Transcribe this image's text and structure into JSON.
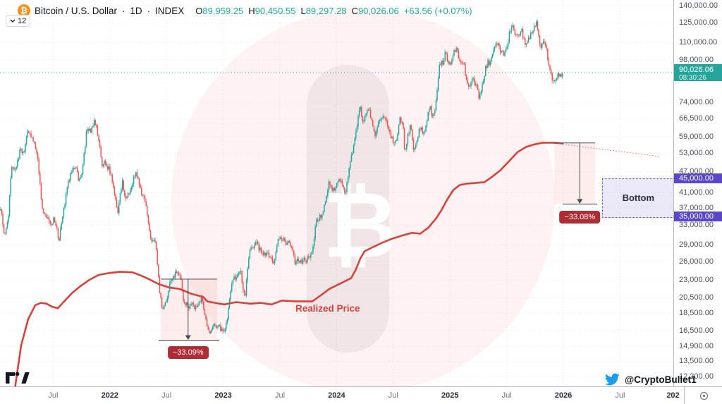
{
  "header": {
    "symbol_title": "Bitcoin / U.S. Dollar",
    "dot": "·",
    "interval": "1D",
    "market": "INDEX",
    "coin_glyph": "₿",
    "ohlc": {
      "o_label": "O",
      "o": "89,959.25",
      "h_label": "H",
      "h": "90,450.55",
      "l_label": "L",
      "l": "89,297.28",
      "c_label": "C",
      "c": "90,026.06",
      "change": "+63.56 (+0.07%)"
    }
  },
  "toolbar": {
    "drawings_count": "12"
  },
  "price_axis": {
    "ticks": [
      {
        "v": 140000,
        "label": "140,000.00"
      },
      {
        "v": 125000,
        "label": "125,000.00"
      },
      {
        "v": 110000,
        "label": "110,000.00"
      },
      {
        "v": 98000,
        "label": "98,000.00"
      },
      {
        "v": 74000,
        "label": "74,000.00"
      },
      {
        "v": 66500,
        "label": "66,500.00"
      },
      {
        "v": 59000,
        "label": "59,000.00"
      },
      {
        "v": 53000,
        "label": "53,000.00"
      },
      {
        "v": 47000,
        "label": "47,000.00"
      },
      {
        "v": 41000,
        "label": "41,000.00"
      },
      {
        "v": 37000,
        "label": "37,000.00"
      },
      {
        "v": 33000,
        "label": "33,000.00"
      },
      {
        "v": 29000,
        "label": "29,000.00"
      },
      {
        "v": 26000,
        "label": "26,000.00"
      },
      {
        "v": 23000,
        "label": "23,000.00"
      },
      {
        "v": 20500,
        "label": "20,500.00"
      },
      {
        "v": 18500,
        "label": "18,500.00"
      },
      {
        "v": 16500,
        "label": "16,500.00"
      },
      {
        "v": 14900,
        "label": "14,900.00"
      },
      {
        "v": 13500,
        "label": "13,500.00"
      },
      {
        "v": 12200,
        "label": "12,200.00"
      }
    ],
    "last_price_badge": {
      "price": "90,026.06",
      "countdown": "08:30:26",
      "value": 90026.06
    },
    "level_badges": [
      {
        "label": "45,000.00",
        "value": 45000
      },
      {
        "label": "35,000.00",
        "value": 35000
      }
    ]
  },
  "time_axis": {
    "ticks": [
      {
        "t": 2021.5,
        "label": "Jul",
        "bold": false
      },
      {
        "t": 2022.0,
        "label": "2022",
        "bold": true
      },
      {
        "t": 2022.5,
        "label": "Jul",
        "bold": false
      },
      {
        "t": 2023.0,
        "label": "2023",
        "bold": true
      },
      {
        "t": 2023.5,
        "label": "Jul",
        "bold": false
      },
      {
        "t": 2024.0,
        "label": "2024",
        "bold": true
      },
      {
        "t": 2024.5,
        "label": "Jul",
        "bold": false
      },
      {
        "t": 2025.0,
        "label": "2025",
        "bold": true
      },
      {
        "t": 2025.5,
        "label": "Jul",
        "bold": false
      },
      {
        "t": 2026.0,
        "label": "2026",
        "bold": true
      },
      {
        "t": 2026.5,
        "label": "Jul",
        "bold": false
      },
      {
        "t": 2027.0,
        "label": "202",
        "bold": true,
        "clip": true
      }
    ]
  },
  "annotations": {
    "drop_2022_label": "−33.09%",
    "drop_2025_label": "−33.08%",
    "bottom_label": "Bottom",
    "realized_label": "Realized Price"
  },
  "watermark": {
    "glyph": "₿"
  },
  "footer": {
    "twitter_handle": "@CryptoBullet1"
  },
  "colors": {
    "up_teal": "#26a69a",
    "down_red": "#ef5350",
    "realized_red": "#d8423d",
    "badge_red": "#b02c35",
    "purple": "#5b46c7",
    "purple_fill": "rgba(91,70,199,0.12)",
    "pink_zone": "rgba(239,83,80,0.10)",
    "watermark_circle": "rgba(240,83,80,0.075)",
    "watermark_band": "rgba(150,152,164,0.13)",
    "grid": "rgba(120,123,134,0.18)",
    "annotation_gray": "#44474f",
    "twitter_blue": "#1d9bf0",
    "bitcoin_orange": "#f7931a"
  },
  "chart_data": {
    "type": "candlestick",
    "title": "Bitcoin / U.S. Dollar · 1D · INDEX",
    "scale": "log",
    "x_domain_years": [
      2021.03,
      2026.97
    ],
    "y_ticks": [
      140000,
      125000,
      110000,
      98000,
      74000,
      66500,
      59000,
      53000,
      47000,
      41000,
      37000,
      33000,
      29000,
      26000,
      23000,
      20500,
      18500,
      16500,
      14900,
      13500,
      12200
    ],
    "last_price": 90026.06,
    "ohlc": {
      "open": 89959.25,
      "high": 90450.55,
      "low": 89297.28,
      "close": 90026.06,
      "change": 63.56,
      "change_pct": 0.07
    },
    "candle_close_anchors": [
      [
        2021.04,
        36500
      ],
      [
        2021.07,
        31000
      ],
      [
        2021.1,
        33500
      ],
      [
        2021.13,
        48000
      ],
      [
        2021.17,
        47500
      ],
      [
        2021.21,
        54500
      ],
      [
        2021.24,
        52000
      ],
      [
        2021.28,
        62500
      ],
      [
        2021.31,
        58500
      ],
      [
        2021.34,
        56000
      ],
      [
        2021.37,
        49000
      ],
      [
        2021.4,
        37000
      ],
      [
        2021.44,
        35500
      ],
      [
        2021.47,
        33000
      ],
      [
        2021.51,
        34500
      ],
      [
        2021.55,
        30000
      ],
      [
        2021.58,
        34000
      ],
      [
        2021.62,
        42000
      ],
      [
        2021.66,
        47500
      ],
      [
        2021.7,
        48800
      ],
      [
        2021.73,
        43500
      ],
      [
        2021.76,
        48000
      ],
      [
        2021.8,
        63500
      ],
      [
        2021.83,
        60500
      ],
      [
        2021.86,
        66500
      ],
      [
        2021.9,
        58500
      ],
      [
        2021.93,
        49000
      ],
      [
        2021.96,
        50500
      ],
      [
        2022.0,
        47000
      ],
      [
        2022.03,
        42500
      ],
      [
        2022.07,
        35800
      ],
      [
        2022.11,
        44200
      ],
      [
        2022.14,
        39000
      ],
      [
        2022.17,
        40500
      ],
      [
        2022.23,
        47200
      ],
      [
        2022.27,
        42000
      ],
      [
        2022.31,
        38500
      ],
      [
        2022.36,
        30000
      ],
      [
        2022.4,
        29800
      ],
      [
        2022.44,
        21000
      ],
      [
        2022.46,
        19000
      ],
      [
        2022.5,
        20200
      ],
      [
        2022.54,
        23200
      ],
      [
        2022.58,
        23900
      ],
      [
        2022.62,
        24100
      ],
      [
        2022.65,
        20100
      ],
      [
        2022.69,
        19200
      ],
      [
        2022.73,
        19500
      ],
      [
        2022.77,
        19300
      ],
      [
        2022.81,
        20400
      ],
      [
        2022.85,
        17500
      ],
      [
        2022.86,
        16300
      ],
      [
        2022.89,
        16000
      ],
      [
        2022.92,
        17200
      ],
      [
        2022.96,
        16800
      ],
      [
        2023.0,
        16600
      ],
      [
        2023.03,
        17200
      ],
      [
        2023.06,
        21000
      ],
      [
        2023.09,
        23100
      ],
      [
        2023.12,
        23200
      ],
      [
        2023.15,
        24600
      ],
      [
        2023.19,
        20300
      ],
      [
        2023.23,
        27500
      ],
      [
        2023.26,
        28400
      ],
      [
        2023.3,
        29300
      ],
      [
        2023.33,
        27800
      ],
      [
        2023.37,
        26900
      ],
      [
        2023.41,
        27200
      ],
      [
        2023.45,
        25300
      ],
      [
        2023.48,
        30600
      ],
      [
        2023.52,
        30400
      ],
      [
        2023.56,
        29100
      ],
      [
        2023.6,
        29300
      ],
      [
        2023.63,
        26000
      ],
      [
        2023.67,
        25900
      ],
      [
        2023.71,
        26100
      ],
      [
        2023.75,
        26500
      ],
      [
        2023.79,
        28000
      ],
      [
        2023.82,
        34200
      ],
      [
        2023.86,
        35000
      ],
      [
        2023.89,
        37000
      ],
      [
        2023.93,
        43700
      ],
      [
        2023.96,
        41900
      ],
      [
        2024.0,
        42800
      ],
      [
        2024.02,
        45000
      ],
      [
        2024.06,
        42600
      ],
      [
        2024.07,
        39900
      ],
      [
        2024.11,
        47800
      ],
      [
        2024.13,
        51500
      ],
      [
        2024.16,
        57000
      ],
      [
        2024.19,
        68000
      ],
      [
        2024.21,
        73000
      ],
      [
        2024.23,
        64500
      ],
      [
        2024.26,
        70000
      ],
      [
        2024.29,
        69500
      ],
      [
        2024.32,
        63800
      ],
      [
        2024.34,
        58200
      ],
      [
        2024.38,
        66500
      ],
      [
        2024.41,
        68800
      ],
      [
        2024.44,
        66200
      ],
      [
        2024.47,
        61000
      ],
      [
        2024.5,
        56500
      ],
      [
        2024.53,
        58000
      ],
      [
        2024.56,
        67500
      ],
      [
        2024.59,
        61500
      ],
      [
        2024.6,
        53500
      ],
      [
        2024.63,
        59400
      ],
      [
        2024.65,
        64300
      ],
      [
        2024.68,
        53900
      ],
      [
        2024.71,
        57500
      ],
      [
        2024.73,
        63200
      ],
      [
        2024.76,
        60300
      ],
      [
        2024.79,
        63000
      ],
      [
        2024.82,
        72500
      ],
      [
        2024.84,
        67500
      ],
      [
        2024.86,
        69400
      ],
      [
        2024.88,
        75500
      ],
      [
        2024.9,
        91000
      ],
      [
        2024.92,
        97500
      ],
      [
        2024.94,
        95800
      ],
      [
        2024.96,
        106000
      ],
      [
        2024.98,
        97000
      ],
      [
        2025.0,
        94400
      ],
      [
        2025.03,
        102000
      ],
      [
        2025.06,
        104500
      ],
      [
        2025.09,
        97800
      ],
      [
        2025.12,
        96500
      ],
      [
        2025.15,
        84500
      ],
      [
        2025.17,
        80500
      ],
      [
        2025.2,
        86000
      ],
      [
        2025.23,
        82800
      ],
      [
        2025.26,
        76500
      ],
      [
        2025.29,
        85200
      ],
      [
        2025.32,
        94500
      ],
      [
        2025.35,
        97000
      ],
      [
        2025.38,
        103500
      ],
      [
        2025.41,
        110500
      ],
      [
        2025.44,
        105000
      ],
      [
        2025.47,
        100500
      ],
      [
        2025.5,
        108000
      ],
      [
        2025.53,
        118200
      ],
      [
        2025.55,
        121500
      ],
      [
        2025.58,
        115500
      ],
      [
        2025.61,
        113000
      ],
      [
        2025.63,
        120500
      ],
      [
        2025.66,
        109000
      ],
      [
        2025.69,
        112500
      ],
      [
        2025.72,
        116000
      ],
      [
        2025.76,
        125000
      ],
      [
        2025.78,
        115000
      ],
      [
        2025.8,
        106000
      ],
      [
        2025.83,
        111500
      ],
      [
        2025.86,
        100500
      ],
      [
        2025.88,
        92500
      ],
      [
        2025.91,
        83500
      ],
      [
        2025.93,
        86500
      ],
      [
        2025.95,
        89500
      ],
      [
        2025.97,
        87500
      ],
      [
        2025.99,
        90000
      ]
    ],
    "realized_price_line": [
      [
        2021.143,
        10200
      ],
      [
        2021.218,
        15000
      ],
      [
        2021.28,
        17800
      ],
      [
        2021.342,
        19500
      ],
      [
        2021.392,
        19800
      ],
      [
        2021.441,
        19700
      ],
      [
        2021.491,
        19300
      ],
      [
        2021.541,
        19100
      ],
      [
        2021.591,
        19900
      ],
      [
        2021.665,
        21100
      ],
      [
        2021.74,
        22100
      ],
      [
        2021.815,
        23000
      ],
      [
        2021.902,
        23800
      ],
      [
        2021.995,
        24100
      ],
      [
        2022.088,
        24300
      ],
      [
        2022.2,
        24200
      ],
      [
        2022.275,
        23700
      ],
      [
        2022.35,
        23100
      ],
      [
        2022.43,
        22400
      ],
      [
        2022.524,
        21900
      ],
      [
        2022.617,
        21700
      ],
      [
        2022.722,
        21000
      ],
      [
        2022.822,
        20600
      ],
      [
        2022.859,
        20000
      ],
      [
        2022.928,
        19800
      ],
      [
        2023.009,
        19600
      ],
      [
        2023.114,
        19900
      ],
      [
        2023.239,
        19700
      ],
      [
        2023.332,
        19800
      ],
      [
        2023.425,
        19600
      ],
      [
        2023.518,
        20100
      ],
      [
        2023.643,
        20000
      ],
      [
        2023.786,
        20000
      ],
      [
        2023.86,
        20800
      ],
      [
        2023.935,
        21700
      ],
      [
        2024.034,
        22500
      ],
      [
        2024.128,
        23300
      ],
      [
        2024.171,
        24700
      ],
      [
        2024.209,
        26500
      ],
      [
        2024.246,
        27800
      ],
      [
        2024.314,
        28500
      ],
      [
        2024.401,
        29400
      ],
      [
        2024.489,
        30200
      ],
      [
        2024.576,
        30800
      ],
      [
        2024.663,
        31400
      ],
      [
        2024.737,
        31200
      ],
      [
        2024.806,
        32400
      ],
      [
        2024.874,
        34400
      ],
      [
        2024.924,
        36400
      ],
      [
        2024.974,
        39000
      ],
      [
        2025.03,
        41600
      ],
      [
        2025.086,
        43000
      ],
      [
        2025.154,
        43400
      ],
      [
        2025.229,
        43600
      ],
      [
        2025.303,
        43800
      ],
      [
        2025.372,
        45400
      ],
      [
        2025.446,
        47400
      ],
      [
        2025.521,
        50300
      ],
      [
        2025.596,
        53400
      ],
      [
        2025.67,
        55200
      ],
      [
        2025.745,
        56200
      ],
      [
        2025.82,
        56800
      ],
      [
        2025.913,
        56800
      ],
      [
        2025.994,
        56500
      ]
    ],
    "realized_projection": [
      [
        2025.994,
        56500
      ],
      [
        2026.846,
        51900
      ]
    ],
    "drop_2022": {
      "pct": "−33.09%",
      "top_price": 23150,
      "bottom_price": 15490,
      "t_start": 2022.45,
      "t_end": 2022.945,
      "arrow_t": 2022.69,
      "bottom_t_start": 2022.43,
      "bottom_t_end": 2022.965
    },
    "drop_2025": {
      "pct": "−33.08%",
      "top_price": 56700,
      "bottom_price": 37940,
      "t_start": 2025.92,
      "t_end": 2026.28,
      "arrow_t": 2026.145,
      "bottom_t_start": 2025.995,
      "bottom_t_end": 2026.3
    },
    "bottom_zone": {
      "label": "Bottom",
      "price_top": 45000,
      "price_bottom": 35000,
      "t_start": 2026.34,
      "t_end": 2026.97
    }
  }
}
